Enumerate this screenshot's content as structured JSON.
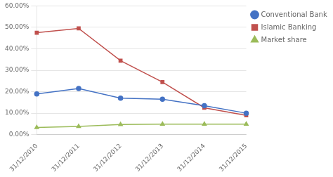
{
  "chart_data": {
    "type": "line",
    "categories": [
      "31/12/2010",
      "31/12/2011",
      "31/12/2012",
      "31/12/2013",
      "31/12/2014",
      "31/12/2015"
    ],
    "series": [
      {
        "name": "Conventional Banking",
        "color": "#4472C4",
        "marker": "circle",
        "values": [
          0.19,
          0.215,
          0.17,
          0.165,
          0.135,
          0.1
        ]
      },
      {
        "name": "Islamic Banking",
        "color": "#C0504D",
        "marker": "square",
        "values": [
          0.475,
          0.495,
          0.345,
          0.245,
          0.125,
          0.09
        ]
      },
      {
        "name": "Market share",
        "color": "#9BBB59",
        "marker": "triangle",
        "values": [
          0.033,
          0.038,
          0.047,
          0.049,
          0.049,
          0.049
        ]
      }
    ],
    "ylim": [
      0.0,
      0.6
    ],
    "yticks": [
      {
        "value": 0.0,
        "label": "0.00%"
      },
      {
        "value": 0.1,
        "label": "10.00%"
      },
      {
        "value": 0.2,
        "label": "20.00%"
      },
      {
        "value": 0.3,
        "label": "30.00%"
      },
      {
        "value": 0.4,
        "label": "40.00%"
      },
      {
        "value": 0.5,
        "label": "50.00%"
      },
      {
        "value": 0.6,
        "label": "60.00%"
      }
    ],
    "grid": "y",
    "legend": "upper right"
  }
}
